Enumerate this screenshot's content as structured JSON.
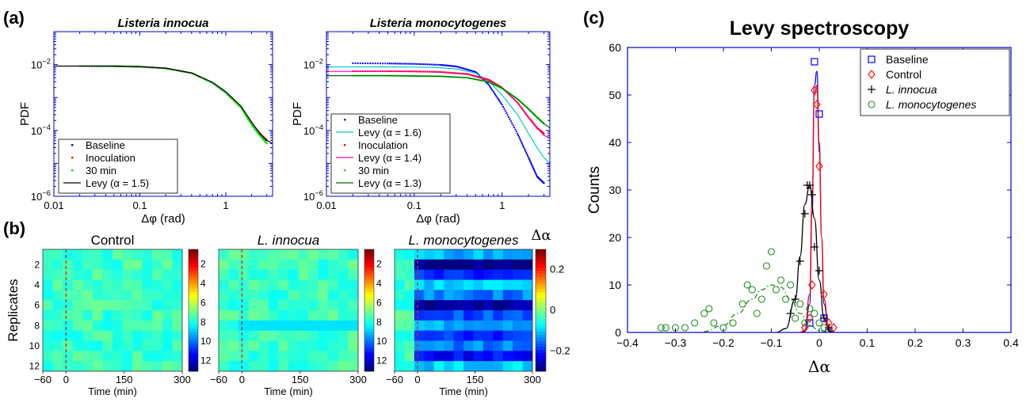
{
  "panel_labels": {
    "a": "(a)",
    "b": "(b)",
    "c": "(c)"
  },
  "chart_data": [
    {
      "id": "a-innocua",
      "type": "line",
      "title": "Listeria innocua",
      "xlabel": "Δφ (rad)",
      "ylabel": "PDF",
      "xscale": "log",
      "yscale": "log",
      "xlim": [
        0.01,
        3.5
      ],
      "ylim": [
        1e-06,
        0.1
      ],
      "x_ticks": [
        "0.01",
        "0.1",
        "1"
      ],
      "y_ticks": [
        "10^-6",
        "10^-4",
        "10^-2"
      ],
      "legend_position": "lower-left",
      "series": [
        {
          "name": "Baseline",
          "color": "#0000ff",
          "style": "points",
          "x": [
            0.02,
            0.05,
            0.1,
            0.2,
            0.4,
            0.7,
            1,
            1.5,
            2,
            2.5,
            3
          ],
          "y": [
            0.009,
            0.0089,
            0.0086,
            0.0077,
            0.0055,
            0.0028,
            0.0014,
            0.0005,
            0.00015,
            7e-05,
            5e-05
          ]
        },
        {
          "name": "Inoculation",
          "color": "#ff0000",
          "style": "points",
          "x": [
            0.02,
            0.05,
            0.1,
            0.2,
            0.4,
            0.7,
            1,
            1.5,
            2,
            2.5,
            3
          ],
          "y": [
            0.009,
            0.0089,
            0.0086,
            0.0077,
            0.0055,
            0.0028,
            0.0014,
            0.0005,
            0.00016,
            8e-05,
            5e-05
          ]
        },
        {
          "name": "30 min",
          "color": "#00ee00",
          "style": "points",
          "x": [
            0.02,
            0.05,
            0.1,
            0.2,
            0.4,
            0.7,
            1,
            1.5,
            2,
            2.5,
            3
          ],
          "y": [
            0.009,
            0.0089,
            0.0086,
            0.0077,
            0.0055,
            0.0028,
            0.0014,
            0.0005,
            0.00015,
            7e-05,
            4e-05
          ]
        },
        {
          "name": "Levy (α = 1.5)",
          "color": "#000000",
          "style": "line",
          "x": [
            0.01,
            0.05,
            0.1,
            0.2,
            0.4,
            0.7,
            1,
            1.5,
            2,
            2.5,
            3,
            3.5
          ],
          "y": [
            0.009,
            0.009,
            0.0087,
            0.0078,
            0.0056,
            0.0029,
            0.0015,
            0.00055,
            0.00018,
            8e-05,
            5e-05,
            4e-05
          ]
        }
      ]
    },
    {
      "id": "a-monocytogenes",
      "type": "line",
      "title": "Listeria monocytogenes",
      "xlabel": "Δφ (rad)",
      "ylabel": "PDF",
      "xscale": "log",
      "yscale": "log",
      "xlim": [
        0.01,
        3.5
      ],
      "ylim": [
        1e-06,
        0.1
      ],
      "x_ticks": [
        "0.01",
        "0.1",
        "1"
      ],
      "y_ticks": [
        "10^-6",
        "10^-4",
        "10^-2"
      ],
      "legend_position": "lower-left",
      "series": [
        {
          "name": "Baseline",
          "color": "#0000ff",
          "style": "points",
          "x": [
            0.02,
            0.05,
            0.1,
            0.2,
            0.3,
            0.5,
            0.7,
            1,
            1.5,
            2,
            2.5,
            3
          ],
          "y": [
            0.011,
            0.0108,
            0.0105,
            0.0098,
            0.0088,
            0.006,
            0.0025,
            0.0006,
            8e-05,
            1.5e-05,
            4e-06,
            2.5e-06
          ]
        },
        {
          "name": "Levy (α = 1.6)",
          "color": "#00cccc",
          "style": "line",
          "x": [
            0.01,
            0.05,
            0.1,
            0.2,
            0.3,
            0.5,
            0.7,
            1,
            1.5,
            2,
            2.5,
            3,
            3.5
          ],
          "y": [
            0.0085,
            0.0085,
            0.0084,
            0.008,
            0.0074,
            0.0055,
            0.0032,
            0.0012,
            0.0003,
            8e-05,
            3e-05,
            1.5e-05,
            1e-05
          ]
        },
        {
          "name": "Inoculation",
          "color": "#ff0000",
          "style": "points",
          "x": [
            0.02,
            0.05,
            0.1,
            0.2,
            0.4,
            0.7,
            1,
            1.5,
            2,
            2.5,
            3
          ],
          "y": [
            0.0063,
            0.0063,
            0.0062,
            0.006,
            0.0052,
            0.0035,
            0.002,
            0.0007,
            0.00025,
            0.00012,
            8e-05
          ]
        },
        {
          "name": "Levy (α = 1.4)",
          "color": "#ff00aa",
          "style": "line",
          "x": [
            0.01,
            0.05,
            0.1,
            0.2,
            0.4,
            0.7,
            1,
            1.5,
            2,
            2.5,
            3,
            3.5
          ],
          "y": [
            0.0062,
            0.0062,
            0.0061,
            0.0058,
            0.005,
            0.0033,
            0.0019,
            0.0007,
            0.00025,
            0.00012,
            7e-05,
            6e-05
          ]
        },
        {
          "name": "30 min",
          "color": "#00ee00",
          "style": "points",
          "x": [
            0.02,
            0.05,
            0.1,
            0.2,
            0.4,
            0.7,
            1,
            1.5,
            2,
            2.5,
            3
          ],
          "y": [
            0.0046,
            0.0046,
            0.0045,
            0.0044,
            0.004,
            0.003,
            0.0019,
            0.0009,
            0.00045,
            0.00025,
            0.00016
          ]
        },
        {
          "name": "Levy (α = 1.3)",
          "color": "#006600",
          "style": "line",
          "x": [
            0.01,
            0.05,
            0.1,
            0.2,
            0.4,
            0.7,
            1,
            1.5,
            2,
            2.5,
            3,
            3.5
          ],
          "y": [
            0.0046,
            0.0046,
            0.0045,
            0.0044,
            0.004,
            0.003,
            0.0019,
            0.0009,
            0.00045,
            0.00025,
            0.00016,
            0.00012
          ]
        }
      ]
    },
    {
      "id": "b-heatmaps",
      "type": "heatmap",
      "titles": [
        "Control",
        "L. innocua",
        "L. monocytogenes"
      ],
      "xlabel": "Time (min)",
      "ylabel": "Replicates",
      "x_ticks": [
        "−60",
        "0",
        "150",
        "300"
      ],
      "y_ticks": [
        "2",
        "4",
        "6",
        "8",
        "10",
        "12"
      ],
      "colorbar_ticks": [
        "2",
        "4",
        "6",
        "8",
        "10",
        "12"
      ],
      "colorbar_label": "Δα",
      "colorbar_values": [
        "0.2",
        "0",
        "−0.2"
      ],
      "zlim": [
        -0.3,
        0.3
      ],
      "x_range": [
        -60,
        300
      ],
      "rows": 12,
      "inoculation_time": 0,
      "base_value": -0.04,
      "row_values_monocytogenes_after": [
        -0.12,
        -0.3,
        -0.2,
        -0.1,
        -0.15,
        -0.28,
        -0.18,
        -0.12,
        -0.2,
        -0.15,
        -0.22,
        -0.1
      ]
    },
    {
      "id": "c-levy-spectroscopy",
      "type": "scatter",
      "title": "Levy spectroscopy",
      "xlabel": "Δα",
      "ylabel": "Counts",
      "xlim": [
        -0.4,
        0.4
      ],
      "ylim": [
        0,
        60
      ],
      "x_ticks": [
        "−0.4",
        "−0.3",
        "−0.2",
        "−0.1",
        "0",
        "0.1",
        "0.2",
        "0.3",
        "0.4"
      ],
      "y_ticks": [
        "0",
        "10",
        "20",
        "30",
        "40",
        "50",
        "60"
      ],
      "legend_position": "top-right",
      "series": [
        {
          "name": "Baseline",
          "color": "#0000ff",
          "marker": "square",
          "x": [
            -0.02,
            -0.01,
            0,
            0.01,
            0.02
          ],
          "y": [
            2,
            57,
            46,
            3,
            0
          ]
        },
        {
          "name": "Control",
          "color": "#ff0000",
          "marker": "diamond",
          "x": [
            -0.03,
            -0.02,
            -0.015,
            -0.01,
            -0.005,
            0,
            0.01,
            0.02,
            0.03
          ],
          "y": [
            1,
            3,
            10,
            51,
            48,
            35,
            8,
            2,
            1
          ]
        },
        {
          "name": "L. innocua",
          "color": "#000000",
          "marker": "plus",
          "x": [
            -0.06,
            -0.05,
            -0.04,
            -0.03,
            -0.025,
            -0.02,
            -0.015,
            -0.01,
            0,
            0.01,
            0.02
          ],
          "y": [
            4,
            7,
            15,
            25,
            31,
            31,
            29,
            18,
            13,
            3,
            1
          ]
        },
        {
          "name": "L. monocytogenes",
          "color": "#1a8a1a",
          "marker": "circle",
          "x": [
            -0.33,
            -0.32,
            -0.3,
            -0.28,
            -0.26,
            -0.24,
            -0.23,
            -0.22,
            -0.2,
            -0.18,
            -0.16,
            -0.15,
            -0.14,
            -0.13,
            -0.12,
            -0.11,
            -0.1,
            -0.09,
            -0.08,
            -0.07,
            -0.06,
            -0.05,
            -0.04,
            -0.03,
            -0.02,
            -0.01,
            0,
            0.01
          ],
          "y": [
            1,
            1,
            1,
            1,
            2,
            4,
            5,
            2,
            1,
            2,
            6,
            10,
            9,
            4,
            7,
            14,
            17,
            9,
            11,
            7,
            10,
            3,
            6,
            2,
            5,
            4,
            2,
            1
          ]
        },
        {
          "name": "Baseline fit",
          "color": "#0000ff",
          "style": "line",
          "legend": false,
          "x": [
            -0.04,
            -0.03,
            -0.02,
            -0.015,
            -0.01,
            -0.005,
            0,
            0.005,
            0.01,
            0.02,
            0.03
          ],
          "y": [
            0,
            0.2,
            6,
            25,
            52,
            55,
            40,
            20,
            6,
            0.3,
            0
          ]
        },
        {
          "name": "Control fit",
          "color": "#ff0000",
          "style": "line",
          "legend": false,
          "x": [
            -0.04,
            -0.03,
            -0.02,
            -0.015,
            -0.01,
            -0.005,
            0,
            0.005,
            0.01,
            0.02,
            0.03
          ],
          "y": [
            0,
            0.5,
            8,
            28,
            50,
            52,
            38,
            20,
            7,
            0.5,
            0
          ]
        },
        {
          "name": "L. innocua fit",
          "color": "#000000",
          "style": "line",
          "legend": false,
          "x": [
            -0.09,
            -0.07,
            -0.05,
            -0.04,
            -0.03,
            -0.02,
            -0.01,
            0,
            0.01,
            0.02,
            0.03
          ],
          "y": [
            0,
            0.8,
            7,
            16,
            27,
            31,
            24,
            11,
            3,
            0.3,
            0
          ]
        },
        {
          "name": "L. monocytogenes fit",
          "color": "#1a8a1a",
          "style": "dashdot",
          "legend": false,
          "x": [
            -0.24,
            -0.2,
            -0.17,
            -0.14,
            -0.12,
            -0.1,
            -0.08,
            -0.06,
            -0.04,
            -0.02,
            0,
            0.02
          ],
          "y": [
            0.2,
            1.5,
            4,
            7,
            9,
            10,
            9.5,
            7,
            4,
            1.5,
            0.4,
            0
          ]
        }
      ]
    }
  ]
}
